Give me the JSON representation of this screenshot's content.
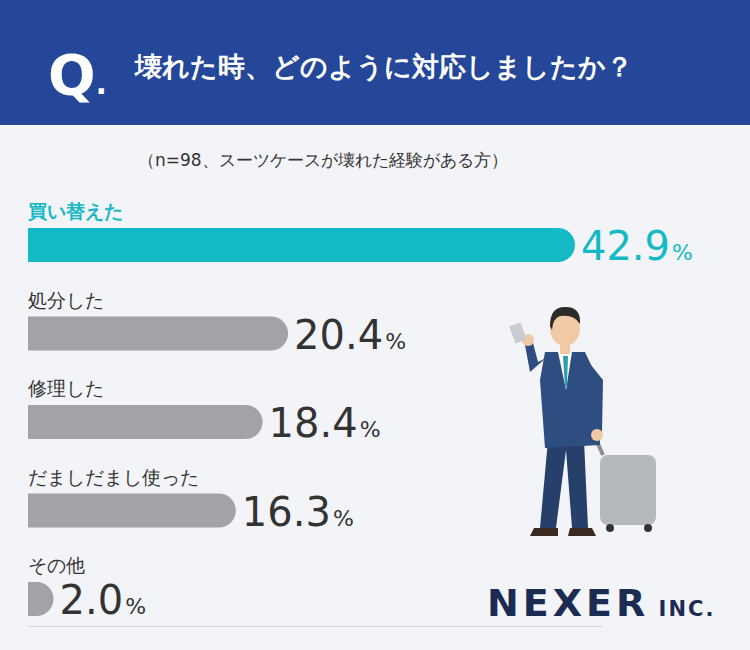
{
  "chart_data": {
    "type": "bar",
    "orientation": "horizontal",
    "question_label": "Q.",
    "title": "壊れた時、どのように対応しましたか？",
    "subtitle": "（n=98、スーツケースが壊れた経験がある方）",
    "categories": [
      "買い替えた",
      "処分した",
      "修理した",
      "だましだまし使った",
      "その他"
    ],
    "values": [
      42.9,
      20.4,
      18.4,
      16.3,
      2.0
    ],
    "value_labels": [
      "42.9%",
      "20.4%",
      "18.4%",
      "16.3%",
      "2.0%"
    ],
    "colors": [
      "#14b9c6",
      "#a2a2a7",
      "#a2a2a7",
      "#a2a2a7",
      "#a2a2a7"
    ],
    "data_labels": true,
    "xlim": [
      0,
      45
    ],
    "xticks": [],
    "tick_labels": false,
    "grid": false,
    "source": "NEXER INC."
  }
}
